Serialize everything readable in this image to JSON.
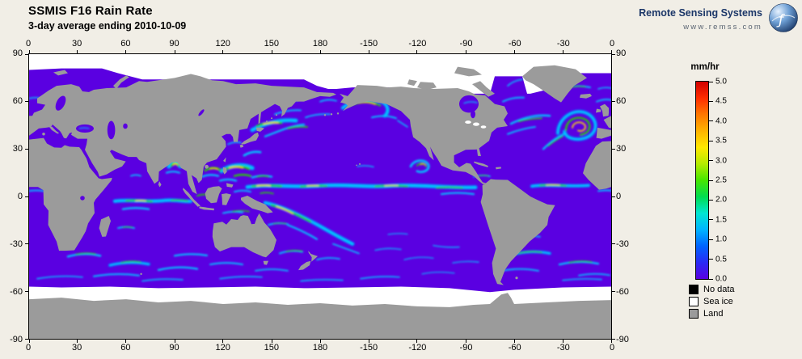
{
  "title": "SSMIS F16 Rain Rate",
  "subtitle": "3-day average ending 2010-10-09",
  "brand": {
    "name": "Remote Sensing Systems",
    "url": "www.remss.com"
  },
  "axes": {
    "lon_ticks": [
      "0",
      "30",
      "60",
      "90",
      "120",
      "150",
      "180",
      "-150",
      "-120",
      "-90",
      "-60",
      "-30",
      "0"
    ],
    "lat_ticks": [
      "90",
      "60",
      "30",
      "0",
      "-30",
      "-60",
      "-90"
    ]
  },
  "colorbar": {
    "unit": "mm/hr",
    "min": "0.0",
    "max": "5.0",
    "ticks": [
      "5.0",
      "4.5",
      "4.0",
      "3.5",
      "3.0",
      "2.5",
      "2.0",
      "1.5",
      "1.0",
      "0.5",
      "0.0"
    ],
    "gradient": [
      "#5a00e1",
      "#2a2af5",
      "#0064ff",
      "#00b4ff",
      "#00e6d2",
      "#00dc50",
      "#46e600",
      "#b4eb00",
      "#ffe800",
      "#ffb400",
      "#ff7800",
      "#ff2d00",
      "#d20000"
    ]
  },
  "legend": [
    {
      "label": "No data",
      "color": "#000000"
    },
    {
      "label": "Sea ice",
      "color": "#ffffff"
    },
    {
      "label": "Land",
      "color": "#9b9b9b"
    }
  ],
  "colors": {
    "background": "#f1eee6",
    "ocean_low": "#5a00e1",
    "land": "#9b9b9b",
    "ice": "#ffffff",
    "no_data": "#000000",
    "frame": "#000000",
    "rain_blue": "#0050ff",
    "rain_cyan": "#00c8ff",
    "rain_green": "#2ad500",
    "rain_yellow": "#ffe800",
    "brand_navy": "#1b3668",
    "url_gray": "#5a6472"
  },
  "map_meta": {
    "variable": "Rain Rate",
    "units": "mm/hr",
    "value_range": [
      0.0,
      5.0
    ],
    "lon_range": [
      0,
      360
    ],
    "lat_range": [
      -90,
      90
    ]
  }
}
